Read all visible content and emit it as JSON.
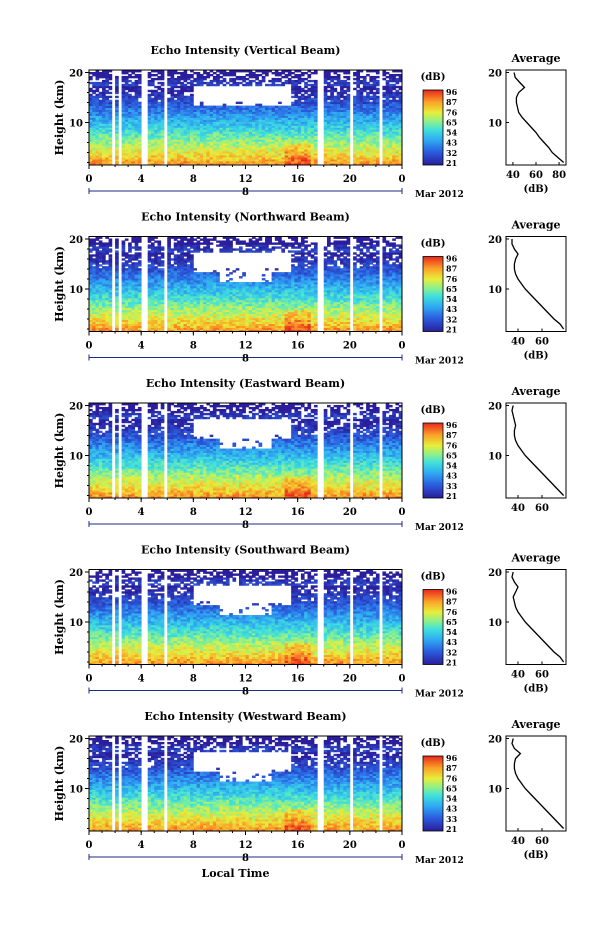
{
  "chart_data": [
    {
      "type": "heatmap",
      "title": "Echo Intensity (Vertical Beam)",
      "ylabel": "Height (km)",
      "ytick_labels": [
        "20",
        "10"
      ],
      "ylim": [
        1.5,
        20.5
      ],
      "xtick_labels": [
        "0",
        "4",
        "8",
        "12",
        "16",
        "20",
        "0"
      ],
      "xlim": [
        0,
        24
      ],
      "date_label": "8",
      "date_suffix": "Mar 2012",
      "colorbar": {
        "unit": "(dB)",
        "ticks": [
          "96",
          "87",
          "76",
          "65",
          "54",
          "43",
          "32",
          "21"
        ],
        "range": [
          21,
          96
        ]
      },
      "gaps": [
        [
          1.7,
          1.9
        ],
        [
          2.3,
          2.5
        ],
        [
          3.9,
          4.5
        ],
        [
          5.7,
          6.0
        ],
        [
          17.5,
          18.0
        ],
        [
          20.0,
          20.3
        ],
        [
          22.3,
          22.6
        ]
      ],
      "average_profile": {
        "title": "Average",
        "xlabel": "(dB)",
        "ytick_labels": [
          "20",
          "10"
        ],
        "xtick_labels": [
          "40",
          "60",
          "80"
        ],
        "xlim": [
          34,
          86
        ],
        "ylim": [
          1.5,
          20.5
        ],
        "height": [
          2,
          3,
          4,
          5,
          6,
          7,
          8,
          9,
          10,
          11,
          12,
          13,
          14,
          15,
          16,
          17,
          18,
          19,
          20
        ],
        "db": [
          84,
          79,
          74,
          71,
          67,
          63,
          60,
          56,
          52,
          48,
          45,
          44,
          43,
          43,
          45,
          50,
          46,
          42,
          41
        ]
      }
    },
    {
      "type": "heatmap",
      "title": "Echo Intensity (Northward Beam)",
      "ylabel": "Height (km)",
      "ytick_labels": [
        "20",
        "10"
      ],
      "ylim": [
        1.5,
        20.5
      ],
      "xtick_labels": [
        "0",
        "4",
        "8",
        "12",
        "16",
        "20",
        "0"
      ],
      "xlim": [
        0,
        24
      ],
      "date_label": "8",
      "date_suffix": "Mar 2012",
      "colorbar": {
        "unit": "(dB)",
        "ticks": [
          "96",
          "87",
          "76",
          "65",
          "54",
          "43",
          "32",
          "21"
        ],
        "range": [
          21,
          96
        ]
      },
      "gaps": [
        [
          1.7,
          1.9
        ],
        [
          2.3,
          2.5
        ],
        [
          3.9,
          4.5
        ],
        [
          5.7,
          6.0
        ],
        [
          17.5,
          18.0
        ],
        [
          20.0,
          20.3
        ],
        [
          22.3,
          22.6
        ]
      ],
      "average_profile": {
        "title": "Average",
        "xlabel": "(dB)",
        "ytick_labels": [
          "20",
          "10"
        ],
        "xtick_labels": [
          "40",
          "60"
        ],
        "xlim": [
          30,
          80
        ],
        "ylim": [
          1.5,
          20.5
        ],
        "height": [
          2,
          3,
          4,
          5,
          6,
          7,
          8,
          9,
          10,
          11,
          12,
          13,
          14,
          15,
          16,
          17,
          18,
          19,
          20
        ],
        "db": [
          78,
          75,
          70,
          66,
          62,
          58,
          54,
          50,
          46,
          43,
          40,
          38,
          37,
          37,
          38,
          40,
          37,
          35,
          35
        ]
      }
    },
    {
      "type": "heatmap",
      "title": "Echo Intensity (Eastward Beam)",
      "ylabel": "Height (km)",
      "ytick_labels": [
        "20",
        "10"
      ],
      "ylim": [
        1.5,
        20.5
      ],
      "xtick_labels": [
        "0",
        "4",
        "8",
        "12",
        "16",
        "20",
        "0"
      ],
      "xlim": [
        0,
        24
      ],
      "date_label": "8",
      "date_suffix": "Mar 2012",
      "colorbar": {
        "unit": "(dB)",
        "ticks": [
          "96",
          "87",
          "76",
          "65",
          "54",
          "43",
          "33",
          "21"
        ],
        "range": [
          21,
          96
        ]
      },
      "gaps": [
        [
          1.7,
          1.9
        ],
        [
          2.3,
          2.5
        ],
        [
          3.9,
          4.5
        ],
        [
          5.7,
          6.0
        ],
        [
          17.5,
          18.0
        ],
        [
          20.0,
          20.3
        ],
        [
          22.3,
          22.6
        ]
      ],
      "average_profile": {
        "title": "Average",
        "xlabel": "",
        "ytick_labels": [
          "20",
          "10"
        ],
        "xtick_labels": [
          "40",
          "60"
        ],
        "xlim": [
          30,
          80
        ],
        "ylim": [
          1.5,
          20.5
        ],
        "height": [
          2,
          3,
          4,
          5,
          6,
          7,
          8,
          9,
          10,
          11,
          12,
          13,
          14,
          15,
          16,
          17,
          18,
          19,
          20
        ],
        "db": [
          78,
          74,
          70,
          66,
          62,
          58,
          54,
          50,
          46,
          43,
          40,
          38,
          37,
          37,
          38,
          37,
          36,
          35,
          36
        ]
      }
    },
    {
      "type": "heatmap",
      "title": "Echo Intensity (Southward Beam)",
      "ylabel": "Height (km)",
      "ytick_labels": [
        "20",
        "10"
      ],
      "ylim": [
        1.5,
        20.5
      ],
      "xtick_labels": [
        "0",
        "4",
        "8",
        "12",
        "16",
        "20",
        "0"
      ],
      "xlim": [
        0,
        24
      ],
      "date_label": "8",
      "date_suffix": "Mar 2012",
      "colorbar": {
        "unit": "(dB)",
        "ticks": [
          "96",
          "87",
          "76",
          "65",
          "54",
          "43",
          "32",
          "21"
        ],
        "range": [
          21,
          96
        ]
      },
      "gaps": [
        [
          1.7,
          1.9
        ],
        [
          2.3,
          2.5
        ],
        [
          3.9,
          4.5
        ],
        [
          5.7,
          6.0
        ],
        [
          17.5,
          18.0
        ],
        [
          20.0,
          20.3
        ],
        [
          22.3,
          22.6
        ]
      ],
      "average_profile": {
        "title": "Average",
        "xlabel": "(dB)",
        "ytick_labels": [
          "20",
          "10"
        ],
        "xtick_labels": [
          "40",
          "60"
        ],
        "xlim": [
          30,
          80
        ],
        "ylim": [
          1.5,
          20.5
        ],
        "height": [
          2,
          3,
          4,
          5,
          6,
          7,
          8,
          9,
          10,
          11,
          12,
          13,
          14,
          15,
          16,
          17,
          18,
          19,
          20
        ],
        "db": [
          78,
          75,
          70,
          66,
          62,
          58,
          54,
          50,
          46,
          43,
          40,
          38,
          37,
          36,
          38,
          40,
          37,
          35,
          36
        ]
      }
    },
    {
      "type": "heatmap",
      "title": "Echo Intensity (Westward Beam)",
      "ylabel": "Height (km)",
      "ytick_labels": [
        "20",
        "10"
      ],
      "ylim": [
        1.5,
        20.5
      ],
      "xtick_labels": [
        "0",
        "4",
        "8",
        "12",
        "16",
        "20",
        "0"
      ],
      "xlim": [
        0,
        24
      ],
      "date_label": "8",
      "date_suffix": "Mar 2012",
      "xlabel": "Local Time",
      "colorbar": {
        "unit": "(dB)",
        "ticks": [
          "96",
          "87",
          "76",
          "65",
          "54",
          "43",
          "33",
          "21"
        ],
        "range": [
          21,
          96
        ]
      },
      "gaps": [
        [
          1.7,
          1.9
        ],
        [
          2.3,
          2.5
        ],
        [
          3.9,
          4.5
        ],
        [
          5.7,
          6.0
        ],
        [
          17.5,
          18.0
        ],
        [
          20.0,
          20.3
        ],
        [
          22.3,
          22.6
        ]
      ],
      "average_profile": {
        "title": "Average",
        "xlabel": "(dB)",
        "ytick_labels": [
          "20",
          "10"
        ],
        "xtick_labels": [
          "40",
          "60"
        ],
        "xlim": [
          30,
          80
        ],
        "ylim": [
          1.5,
          20.5
        ],
        "height": [
          2,
          3,
          4,
          5,
          6,
          7,
          8,
          9,
          10,
          11,
          12,
          13,
          14,
          15,
          16,
          17,
          18,
          19,
          20
        ],
        "db": [
          78,
          74,
          70,
          66,
          62,
          58,
          54,
          50,
          46,
          43,
          40,
          38,
          37,
          37,
          38,
          42,
          37,
          35,
          36
        ]
      }
    }
  ]
}
